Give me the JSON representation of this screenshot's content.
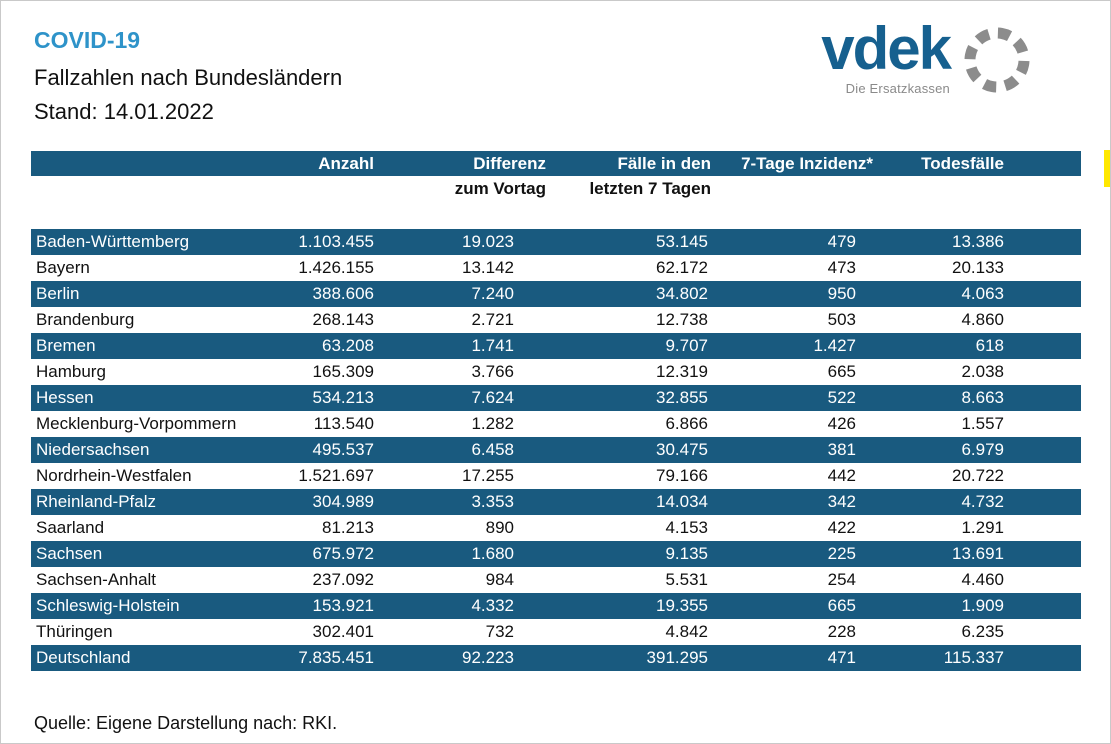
{
  "header": {
    "kicker": "COVID-19",
    "title": "Fallzahlen nach Bundesländern",
    "date_line": "Stand: 14.01.2022"
  },
  "logo": {
    "wordmark": "vdek",
    "tagline": "Die Ersatzkassen",
    "ring_icon": "dotted-circle"
  },
  "chart_data": {
    "type": "table",
    "title": "COVID-19 Fallzahlen nach Bundesländern, Stand: 14.01.2022",
    "columns": [
      {
        "label": "",
        "sublabel": ""
      },
      {
        "label": "Anzahl",
        "sublabel": ""
      },
      {
        "label": "Differenz",
        "sublabel": "zum Vortag"
      },
      {
        "label": "Fälle in den",
        "sublabel": "letzten 7 Tagen"
      },
      {
        "label": "7-Tage Inzidenz*",
        "sublabel": ""
      },
      {
        "label": "Todesfälle",
        "sublabel": ""
      }
    ],
    "rows": [
      {
        "name": "Baden-Württemberg",
        "anzahl": "1.103.455",
        "differenz": "19.023",
        "faelle_letzte_7_tage": "53.145",
        "inzidenz_7_tage": "479",
        "todesfaelle": "13.386"
      },
      {
        "name": "Bayern",
        "anzahl": "1.426.155",
        "differenz": "13.142",
        "faelle_letzte_7_tage": "62.172",
        "inzidenz_7_tage": "473",
        "todesfaelle": "20.133"
      },
      {
        "name": "Berlin",
        "anzahl": "388.606",
        "differenz": "7.240",
        "faelle_letzte_7_tage": "34.802",
        "inzidenz_7_tage": "950",
        "todesfaelle": "4.063"
      },
      {
        "name": "Brandenburg",
        "anzahl": "268.143",
        "differenz": "2.721",
        "faelle_letzte_7_tage": "12.738",
        "inzidenz_7_tage": "503",
        "todesfaelle": "4.860"
      },
      {
        "name": "Bremen",
        "anzahl": "63.208",
        "differenz": "1.741",
        "faelle_letzte_7_tage": "9.707",
        "inzidenz_7_tage": "1.427",
        "todesfaelle": "618"
      },
      {
        "name": "Hamburg",
        "anzahl": "165.309",
        "differenz": "3.766",
        "faelle_letzte_7_tage": "12.319",
        "inzidenz_7_tage": "665",
        "todesfaelle": "2.038"
      },
      {
        "name": "Hessen",
        "anzahl": "534.213",
        "differenz": "7.624",
        "faelle_letzte_7_tage": "32.855",
        "inzidenz_7_tage": "522",
        "todesfaelle": "8.663"
      },
      {
        "name": "Mecklenburg-Vorpommern",
        "anzahl": "113.540",
        "differenz": "1.282",
        "faelle_letzte_7_tage": "6.866",
        "inzidenz_7_tage": "426",
        "todesfaelle": "1.557"
      },
      {
        "name": "Niedersachsen",
        "anzahl": "495.537",
        "differenz": "6.458",
        "faelle_letzte_7_tage": "30.475",
        "inzidenz_7_tage": "381",
        "todesfaelle": "6.979"
      },
      {
        "name": "Nordrhein-Westfalen",
        "anzahl": "1.521.697",
        "differenz": "17.255",
        "faelle_letzte_7_tage": "79.166",
        "inzidenz_7_tage": "442",
        "todesfaelle": "20.722"
      },
      {
        "name": "Rheinland-Pfalz",
        "anzahl": "304.989",
        "differenz": "3.353",
        "faelle_letzte_7_tage": "14.034",
        "inzidenz_7_tage": "342",
        "todesfaelle": "4.732"
      },
      {
        "name": "Saarland",
        "anzahl": "81.213",
        "differenz": "890",
        "faelle_letzte_7_tage": "4.153",
        "inzidenz_7_tage": "422",
        "todesfaelle": "1.291"
      },
      {
        "name": "Sachsen",
        "anzahl": "675.972",
        "differenz": "1.680",
        "faelle_letzte_7_tage": "9.135",
        "inzidenz_7_tage": "225",
        "todesfaelle": "13.691"
      },
      {
        "name": "Sachsen-Anhalt",
        "anzahl": "237.092",
        "differenz": "984",
        "faelle_letzte_7_tage": "5.531",
        "inzidenz_7_tage": "254",
        "todesfaelle": "4.460"
      },
      {
        "name": "Schleswig-Holstein",
        "anzahl": "153.921",
        "differenz": "4.332",
        "faelle_letzte_7_tage": "19.355",
        "inzidenz_7_tage": "665",
        "todesfaelle": "1.909"
      },
      {
        "name": "Thüringen",
        "anzahl": "302.401",
        "differenz": "732",
        "faelle_letzte_7_tage": "4.842",
        "inzidenz_7_tage": "228",
        "todesfaelle": "6.235"
      },
      {
        "name": "Deutschland",
        "anzahl": "7.835.451",
        "differenz": "92.223",
        "faelle_letzte_7_tage": "391.295",
        "inzidenz_7_tage": "471",
        "todesfaelle": "115.337"
      }
    ],
    "layout": {
      "striped": true,
      "stripe_pattern": "odd-rows-blue",
      "numbers_format": "de-DE thousands dot"
    }
  },
  "footer": {
    "source": "Quelle: Eigene Darstellung nach: RKI."
  },
  "colors": {
    "band_blue": "#195a7f",
    "kicker_blue": "#2e93c9",
    "logo_blue": "#16608f",
    "logo_gray": "#8a8a8a",
    "highlight_yellow": "#ffe800",
    "page_border": "#c9c9c9"
  }
}
